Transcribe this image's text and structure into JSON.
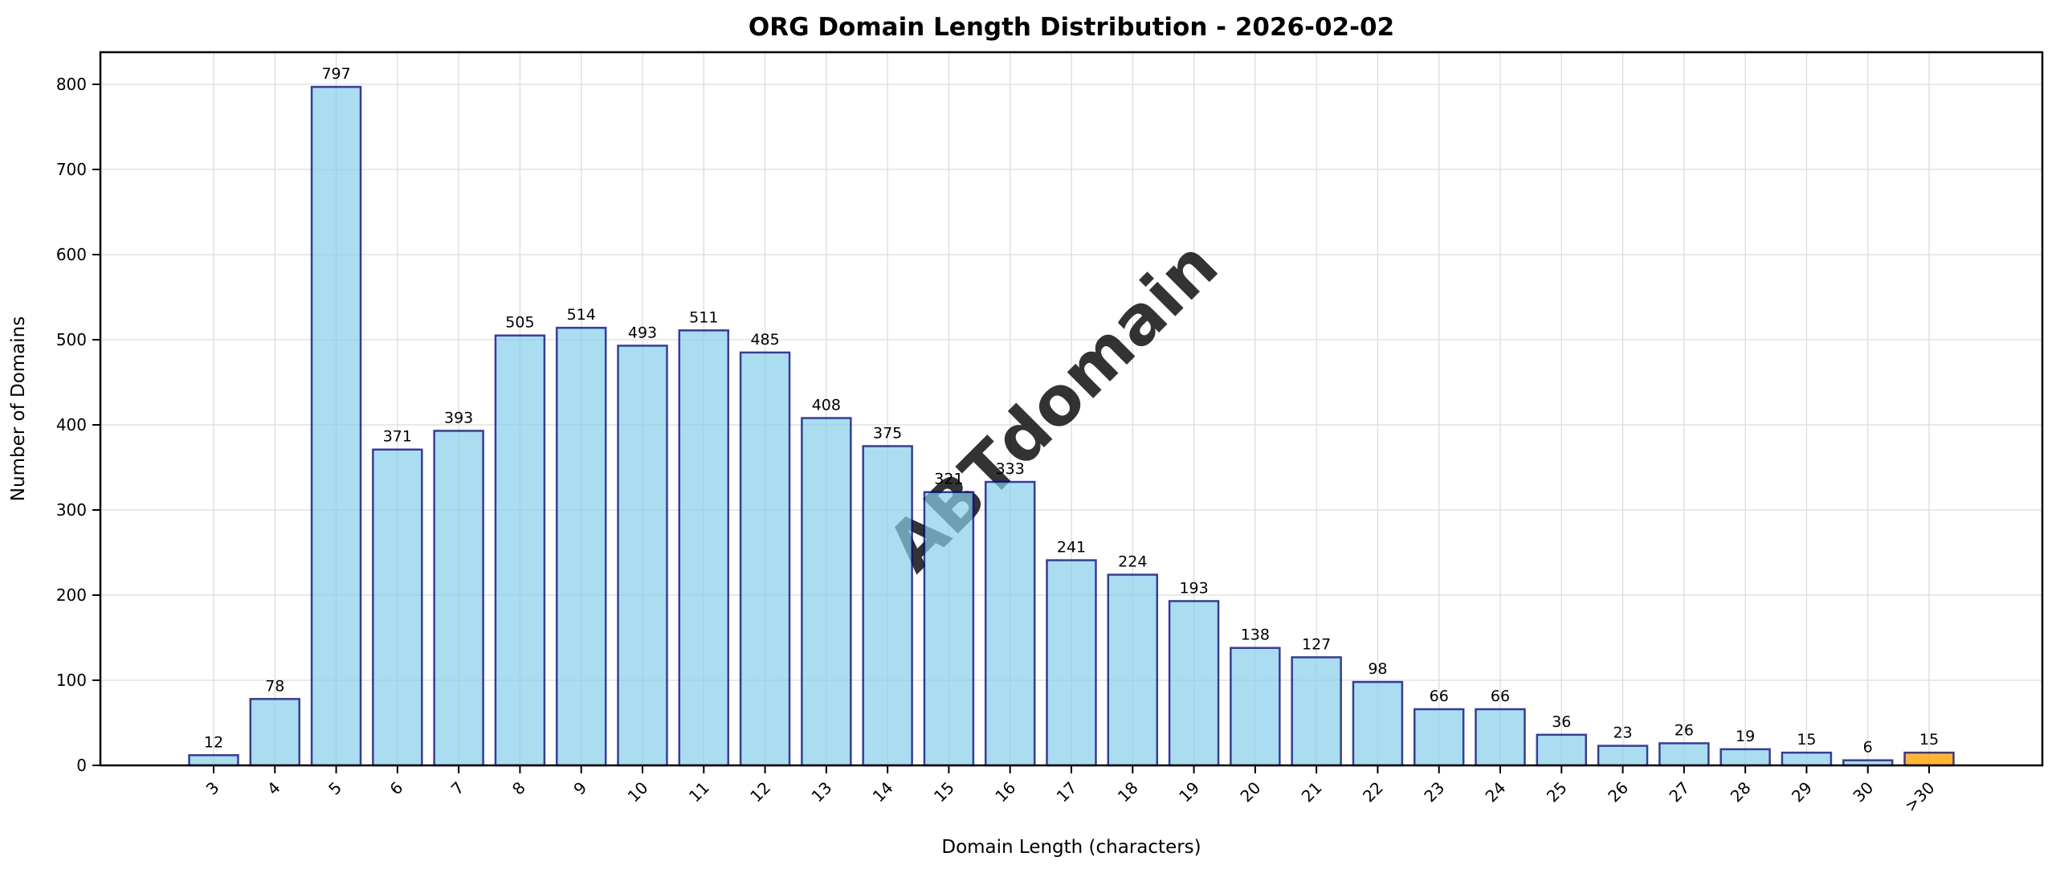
{
  "page": {
    "title": "ORG Domain Length Distribution - 2026-02-02"
  },
  "chart_data": {
    "type": "bar",
    "title": "ORG Domain Length Distribution - 2026-02-02",
    "xlabel": "Domain Length (characters)",
    "ylabel": "Number of Domains",
    "categories": [
      "3",
      "4",
      "5",
      "6",
      "7",
      "8",
      "9",
      "10",
      "11",
      "12",
      "13",
      "14",
      "15",
      "16",
      "17",
      "18",
      "19",
      "20",
      "21",
      "22",
      "23",
      "24",
      "25",
      "26",
      "27",
      "28",
      "29",
      "30",
      ">30"
    ],
    "values": [
      12,
      78,
      797,
      371,
      393,
      505,
      514,
      493,
      511,
      485,
      408,
      375,
      321,
      333,
      241,
      224,
      193,
      138,
      127,
      98,
      66,
      66,
      36,
      23,
      26,
      19,
      15,
      6,
      15
    ],
    "value_labels": [
      "12",
      "78",
      "797",
      "371",
      "393",
      "505",
      "514",
      "493",
      "511",
      "485",
      "408",
      "375",
      "321",
      "333",
      "241",
      "224",
      "193",
      "138",
      "127",
      "98",
      "66",
      "66",
      "36",
      "23",
      "26",
      "19",
      "15",
      "6",
      "15"
    ],
    "yticks": [
      0,
      100,
      200,
      300,
      400,
      500,
      600,
      700,
      800
    ],
    "ylim": [
      0,
      838
    ],
    "grid": true,
    "legend": "none",
    "bar_color": "#87CEEB",
    "bar_edge_color": "#000080",
    "highlight_last_bar_color": "#FFA500",
    "highlight_last_category": ">30",
    "watermark": "ABTdomain",
    "watermark_color": "#c9c9c9",
    "grid_color": "#dcdcdc",
    "axis_color": "#000000"
  }
}
